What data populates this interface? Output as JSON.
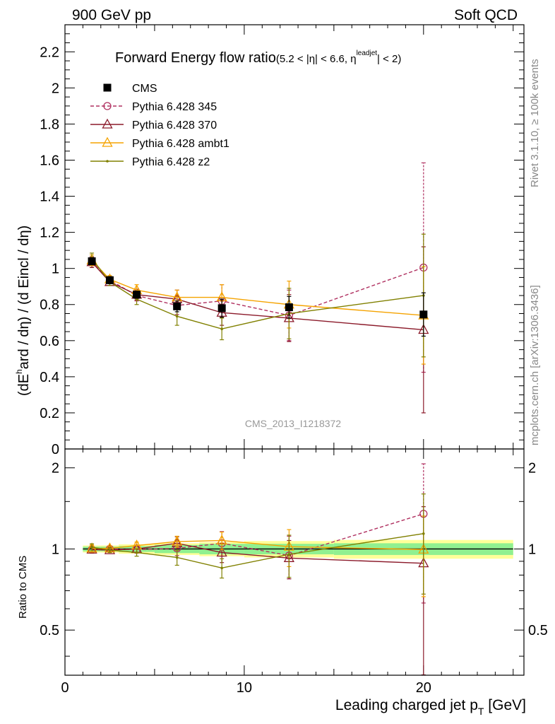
{
  "header": {
    "left": "900 GeV pp",
    "right": "Soft QCD"
  },
  "side_labels": {
    "rivet": "Rivet 3.1.10, ≥ 100k events",
    "mcplots": "mcplots.cern.ch [arXiv:1306.3436]"
  },
  "chart_data": [
    {
      "type": "line",
      "title_main": "Forward Energy flow ratio",
      "title_cut_a": "(5.2 < |η| < 6.6, η",
      "title_cut_sup": "leadjet",
      "title_cut_b": "| < 2)",
      "ylabel": "(dE^hard / dη) / (d Eincl / dη)",
      "ylabel_a": "(dE",
      "ylabel_sup": "h",
      "ylabel_b": "ard / dη) / (d Eincl / dη)",
      "watermark": "CMS_2013_I1218372",
      "xlim": [
        0,
        25.6
      ],
      "ylim": [
        0,
        2.35
      ],
      "yticks": [
        0,
        0.2,
        0.4,
        0.6,
        0.8,
        1,
        1.2,
        1.4,
        1.6,
        1.8,
        2,
        2.2
      ],
      "ytick_labels": [
        "0",
        "0.2",
        "0.4",
        "0.6",
        "0.8",
        "1",
        "1.2",
        "1.4",
        "1.6",
        "1.8",
        "2",
        "2.2"
      ],
      "x": [
        1.5,
        2.5,
        4.0,
        6.25,
        8.75,
        12.5,
        20.0
      ],
      "legend_position": "top-left",
      "series": [
        {
          "name": "CMS",
          "color": "#000000",
          "marker": "square",
          "values": [
            1.04,
            0.935,
            0.855,
            0.79,
            0.78,
            0.785,
            0.745
          ],
          "errors": [
            0.02,
            0.02,
            0.02,
            0.03,
            0.05,
            0.06,
            0.12
          ]
        },
        {
          "name": "Pythia 6.428 345",
          "color": "#b03060",
          "marker": "circle",
          "dash": true,
          "values": [
            1.035,
            0.935,
            0.85,
            0.795,
            0.82,
            0.74,
            1.005
          ],
          "errors": [
            0.03,
            0.02,
            0.03,
            0.05,
            0.09,
            0.14,
            0.58
          ]
        },
        {
          "name": "Pythia 6.428 370",
          "color": "#8b1a2a",
          "marker": "triangle",
          "values": [
            1.035,
            0.925,
            0.855,
            0.83,
            0.755,
            0.725,
            0.66
          ],
          "errors": [
            0.03,
            0.02,
            0.03,
            0.05,
            0.07,
            0.13,
            0.46
          ]
        },
        {
          "name": "Pythia 6.428 ambt1",
          "color": "#f5a300",
          "marker": "triangle",
          "values": [
            1.045,
            0.94,
            0.88,
            0.84,
            0.84,
            0.8,
            0.74
          ],
          "errors": [
            0.03,
            0.02,
            0.03,
            0.04,
            0.07,
            0.13,
            0.27
          ]
        },
        {
          "name": "Pythia 6.428 z2",
          "color": "#808000",
          "marker": "dot",
          "values": [
            1.055,
            0.925,
            0.83,
            0.735,
            0.665,
            0.75,
            0.85
          ],
          "errors": [
            0.03,
            0.02,
            0.03,
            0.05,
            0.06,
            0.14,
            0.34
          ]
        }
      ]
    },
    {
      "type": "line",
      "ylabel": "Ratio to CMS",
      "xlabel_a": "Leading charged jet p",
      "xlabel_sub": "T",
      "xlabel_b": " [GeV]",
      "xlim": [
        0,
        25.6
      ],
      "ylim": [
        0.34,
        2.35
      ],
      "log_y": true,
      "xticks": [
        0,
        10,
        20
      ],
      "xtick_labels": [
        "0",
        "10",
        "20"
      ],
      "yticks": [
        0.5,
        1,
        2
      ],
      "ytick_labels": [
        "0.5",
        "1",
        "2"
      ],
      "bands": {
        "bin_edges": [
          1,
          2,
          3,
          5,
          7.5,
          10,
          15,
          25
        ],
        "inner": [
          0.02,
          0.02,
          0.025,
          0.035,
          0.045,
          0.045,
          0.05
        ],
        "outer": [
          0.03,
          0.03,
          0.04,
          0.05,
          0.06,
          0.07,
          0.08
        ],
        "inner_color": "#90f090",
        "outer_color": "#ffff99"
      },
      "x": [
        1.5,
        2.5,
        4.0,
        6.25,
        8.75,
        12.5,
        20.0
      ],
      "series": [
        {
          "name": "Pythia 6.428 345",
          "color": "#b03060",
          "marker": "circle",
          "dash": true,
          "values": [
            0.995,
            1.0,
            0.995,
            1.005,
            1.05,
            0.945,
            1.35
          ],
          "errors": [
            0.03,
            0.02,
            0.03,
            0.06,
            0.11,
            0.17,
            0.72
          ]
        },
        {
          "name": "Pythia 6.428 370",
          "color": "#8b1a2a",
          "marker": "triangle",
          "values": [
            0.995,
            0.99,
            1.0,
            1.05,
            0.97,
            0.925,
            0.885
          ],
          "errors": [
            0.03,
            0.02,
            0.03,
            0.06,
            0.08,
            0.15,
            0.55
          ]
        },
        {
          "name": "Pythia 6.428 ambt1",
          "color": "#f5a300",
          "marker": "triangle",
          "values": [
            1.005,
            1.005,
            1.03,
            1.065,
            1.075,
            1.02,
            0.995
          ],
          "errors": [
            0.03,
            0.02,
            0.03,
            0.05,
            0.08,
            0.16,
            0.33
          ]
        },
        {
          "name": "Pythia 6.428 z2",
          "color": "#808000",
          "marker": "dot",
          "values": [
            1.015,
            0.99,
            0.97,
            0.93,
            0.85,
            0.955,
            1.14
          ],
          "errors": [
            0.03,
            0.02,
            0.03,
            0.06,
            0.07,
            0.17,
            0.46
          ]
        }
      ]
    }
  ]
}
